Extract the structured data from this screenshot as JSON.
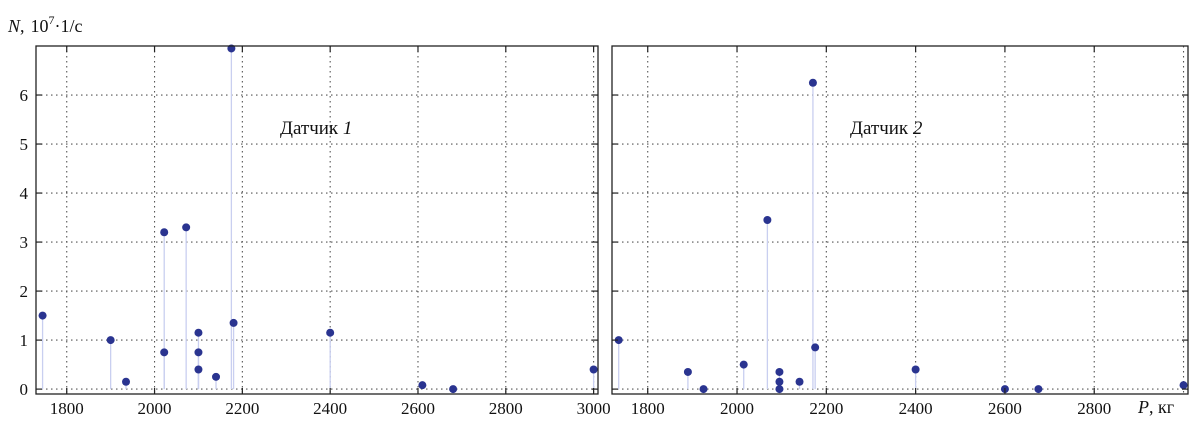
{
  "y_axis_label": {
    "symbol": "N",
    "comma": ",",
    "base": "10",
    "exponent": "7",
    "unit": "·1/с"
  },
  "x_axis_label": {
    "symbol": "P",
    "unit": ", кг"
  },
  "chart_data": [
    {
      "type": "scatter",
      "panel_label": {
        "prefix": "Датчик ",
        "number": "1"
      },
      "xlim": [
        1730,
        3010
      ],
      "ylim": [
        -0.1,
        7.0
      ],
      "x_ticks": [
        "1800",
        "2000",
        "2200",
        "2400",
        "2600",
        "2800",
        "3000"
      ],
      "y_ticks": [
        "0",
        "1",
        "2",
        "3",
        "4",
        "5",
        "6"
      ],
      "grid": true,
      "stems": true,
      "marker_color": "#2a3490",
      "stem_color": "#c9cff0",
      "points": [
        {
          "x": 1745,
          "y": 1.5
        },
        {
          "x": 1900,
          "y": 1.0
        },
        {
          "x": 1935,
          "y": 0.15
        },
        {
          "x": 2022,
          "y": 3.2
        },
        {
          "x": 2022,
          "y": 0.75
        },
        {
          "x": 2072,
          "y": 3.3
        },
        {
          "x": 2100,
          "y": 1.15
        },
        {
          "x": 2100,
          "y": 0.75
        },
        {
          "x": 2100,
          "y": 0.4
        },
        {
          "x": 2140,
          "y": 0.25
        },
        {
          "x": 2175,
          "y": 6.95
        },
        {
          "x": 2180,
          "y": 1.35
        },
        {
          "x": 2400,
          "y": 1.15
        },
        {
          "x": 2610,
          "y": 0.08
        },
        {
          "x": 2680,
          "y": 0.0
        },
        {
          "x": 3000,
          "y": 0.4
        }
      ]
    },
    {
      "type": "scatter",
      "panel_label": {
        "prefix": "Датчик ",
        "number": "2"
      },
      "xlim": [
        1720,
        3010
      ],
      "ylim": [
        -0.1,
        7.0
      ],
      "x_ticks": [
        "1800",
        "2000",
        "2200",
        "2400",
        "2600",
        "2800"
      ],
      "y_ticks": [],
      "grid": true,
      "stems": true,
      "marker_color": "#2a3490",
      "stem_color": "#c9cff0",
      "points": [
        {
          "x": 1735,
          "y": 1.0
        },
        {
          "x": 1890,
          "y": 0.35
        },
        {
          "x": 1925,
          "y": 0.0
        },
        {
          "x": 2015,
          "y": 0.5
        },
        {
          "x": 2068,
          "y": 3.45
        },
        {
          "x": 2095,
          "y": 0.35
        },
        {
          "x": 2095,
          "y": 0.15
        },
        {
          "x": 2095,
          "y": 0.0
        },
        {
          "x": 2140,
          "y": 0.15
        },
        {
          "x": 2170,
          "y": 6.25
        },
        {
          "x": 2175,
          "y": 0.85
        },
        {
          "x": 2400,
          "y": 0.4
        },
        {
          "x": 2600,
          "y": 0.0
        },
        {
          "x": 2675,
          "y": 0.0
        },
        {
          "x": 3000,
          "y": 0.08
        }
      ]
    }
  ]
}
